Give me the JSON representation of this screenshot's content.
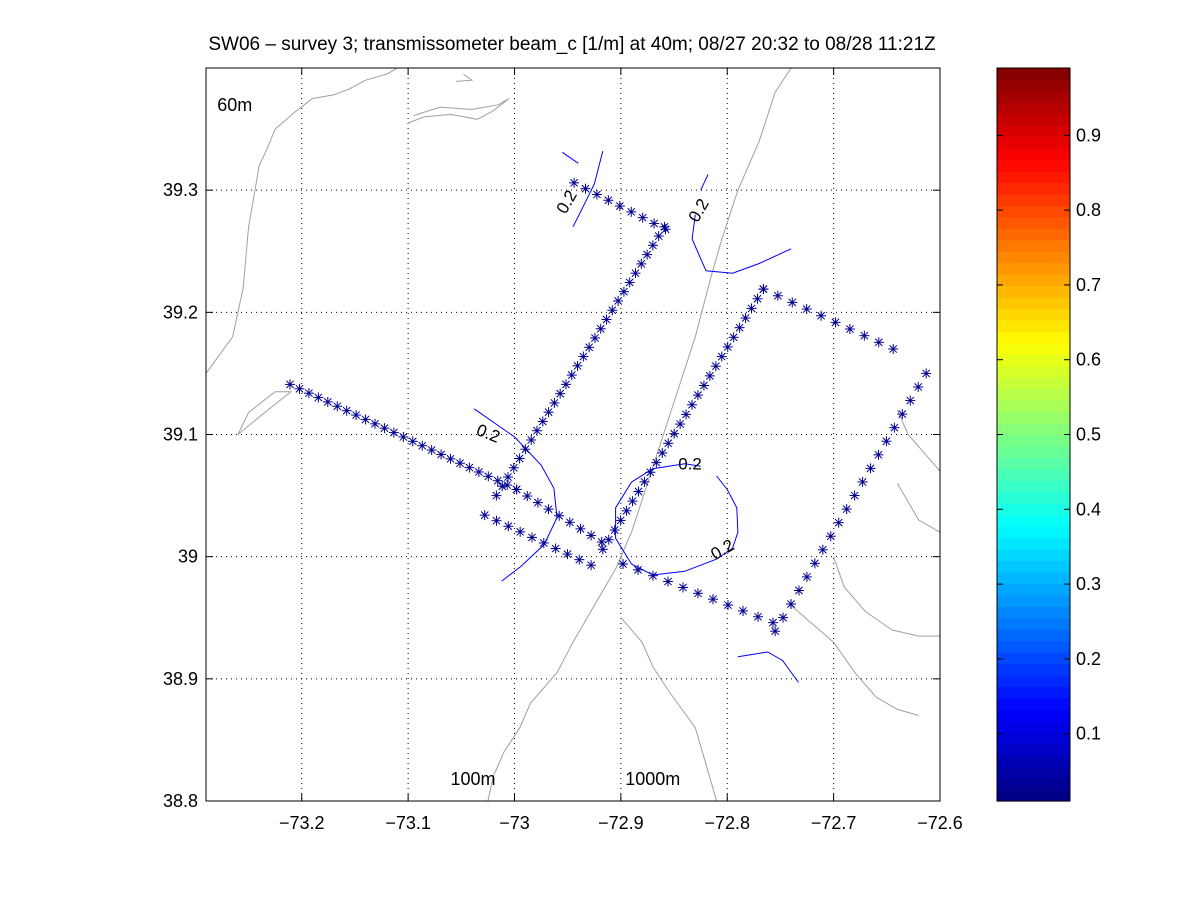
{
  "chart_data": {
    "type": "scatter",
    "title": "SW06 – survey 3; transmissometer beam_c [1/m] at 40m; 08/27 20:32 to 08/28 11:21Z",
    "xlabel": "",
    "ylabel": "",
    "xlim": [
      -73.29,
      -72.6
    ],
    "ylim": [
      38.8,
      39.4
    ],
    "xticks": [
      -73.2,
      -73.1,
      -73.0,
      -72.9,
      -72.8,
      -72.7,
      -72.6
    ],
    "xtick_labels": [
      "−73.2",
      "−73.1",
      "−73",
      "−72.9",
      "−72.8",
      "−72.7",
      "−72.6"
    ],
    "yticks": [
      38.8,
      38.9,
      39.0,
      39.1,
      39.2,
      39.3
    ],
    "ytick_labels": [
      "38.8",
      "38.9",
      "39",
      "39.1",
      "39.2",
      "39.3"
    ],
    "grid": true,
    "colors": {
      "stations": "#00008f",
      "contour": "#0000ff",
      "bathymetry": "#a0a0a0",
      "axes": "#000000",
      "grid": "#000000"
    },
    "station_marker": "asterisk",
    "station_segments": [
      {
        "from": [
          -73.211,
          39.141
        ],
        "to": [
          -72.998,
          39.055
        ],
        "count": 25
      },
      {
        "from": [
          -72.998,
          39.055
        ],
        "to": [
          -72.918,
          39.012
        ],
        "count": 9
      },
      {
        "from": [
          -73.017,
          39.05
        ],
        "to": [
          -72.859,
          39.27
        ],
        "count": 30
      },
      {
        "from": [
          -72.944,
          39.306
        ],
        "to": [
          -72.858,
          39.268
        ],
        "count": 9
      },
      {
        "from": [
          -73.028,
          39.034
        ],
        "to": [
          -72.928,
          38.993
        ],
        "count": 10
      },
      {
        "from": [
          -72.917,
          39.006
        ],
        "to": [
          -72.766,
          39.219
        ],
        "count": 28
      },
      {
        "from": [
          -72.898,
          38.994
        ],
        "to": [
          -72.757,
          38.946
        ],
        "count": 11
      },
      {
        "from": [
          -72.766,
          39.219
        ],
        "to": [
          -72.644,
          39.17
        ],
        "count": 10
      },
      {
        "from": [
          -72.613,
          39.15
        ],
        "to": [
          -72.755,
          38.939
        ],
        "count": 20
      }
    ],
    "contour_level": 0.2,
    "contour_label": "0.2",
    "contour_lines": [
      [
        [
          -73.038,
          39.121
        ],
        [
          -73.0,
          39.098
        ],
        [
          -72.975,
          39.075
        ],
        [
          -72.963,
          39.056
        ],
        [
          -72.96,
          39.032
        ],
        [
          -72.972,
          39.01
        ],
        [
          -72.994,
          38.992
        ],
        [
          -73.012,
          38.98
        ]
      ],
      [
        [
          -72.945,
          39.27
        ],
        [
          -72.938,
          39.282
        ],
        [
          -72.925,
          39.305
        ],
        [
          -72.917,
          39.332
        ]
      ],
      [
        [
          -72.94,
          39.322
        ],
        [
          -72.955,
          39.331
        ]
      ],
      [
        [
          -72.83,
          39.28
        ],
        [
          -72.833,
          39.26
        ],
        [
          -72.82,
          39.234
        ],
        [
          -72.795,
          39.232
        ],
        [
          -72.77,
          39.24
        ],
        [
          -72.74,
          39.252
        ]
      ],
      [
        [
          -72.825,
          39.3
        ],
        [
          -72.818,
          39.313
        ]
      ],
      [
        [
          -72.81,
          39.066
        ],
        [
          -72.8,
          39.055
        ],
        [
          -72.791,
          39.04
        ],
        [
          -72.79,
          39.02
        ],
        [
          -72.795,
          39.007
        ],
        [
          -72.81,
          38.998
        ],
        [
          -72.84,
          38.988
        ],
        [
          -72.87,
          38.985
        ],
        [
          -72.89,
          38.994
        ],
        [
          -72.905,
          39.015
        ],
        [
          -72.905,
          39.04
        ],
        [
          -72.89,
          39.061
        ],
        [
          -72.87,
          39.072
        ],
        [
          -72.84,
          39.076
        ],
        [
          -72.825,
          39.074
        ]
      ],
      [
        [
          -72.79,
          38.918
        ],
        [
          -72.762,
          38.922
        ],
        [
          -72.748,
          38.915
        ],
        [
          -72.733,
          38.897
        ]
      ]
    ],
    "contour_labels": [
      {
        "x": -73.025,
        "y": 39.1,
        "rotation": 22
      },
      {
        "x": -72.95,
        "y": 39.29,
        "rotation": -60
      },
      {
        "x": -72.826,
        "y": 39.283,
        "rotation": -60
      },
      {
        "x": -72.835,
        "y": 39.075,
        "rotation": 0
      },
      {
        "x": -72.804,
        "y": 39.005,
        "rotation": -30
      }
    ],
    "bathymetry_labels": [
      "60m",
      "100m",
      "1000m"
    ],
    "bathymetry_label_positions": [
      {
        "x": -73.263,
        "y": 39.365
      },
      {
        "x": -73.039,
        "y": 38.813
      },
      {
        "x": -72.87,
        "y": 38.813
      }
    ],
    "bathymetry_contours": [
      [
        [
          -73.29,
          39.15
        ],
        [
          -73.265,
          39.18
        ],
        [
          -73.255,
          39.22
        ],
        [
          -73.25,
          39.27
        ],
        [
          -73.24,
          39.32
        ],
        [
          -73.232,
          39.335
        ],
        [
          -73.225,
          39.35
        ],
        [
          -73.205,
          39.365
        ],
        [
          -73.19,
          39.375
        ],
        [
          -73.17,
          39.378
        ],
        [
          -73.155,
          39.383
        ],
        [
          -73.14,
          39.39
        ],
        [
          -73.12,
          39.395
        ],
        [
          -73.11,
          39.4
        ]
      ],
      [
        [
          -73.26,
          39.1
        ],
        [
          -73.232,
          39.12
        ],
        [
          -73.21,
          39.135
        ],
        [
          -73.225,
          39.135
        ],
        [
          -73.25,
          39.118
        ],
        [
          -73.26,
          39.1
        ]
      ],
      [
        [
          -73.1,
          39.355
        ],
        [
          -73.085,
          39.36
        ],
        [
          -73.06,
          39.362
        ],
        [
          -73.035,
          39.358
        ],
        [
          -73.02,
          39.365
        ],
        [
          -73.005,
          39.375
        ],
        [
          -73.015,
          39.37
        ],
        [
          -73.04,
          39.366
        ],
        [
          -73.07,
          39.368
        ],
        [
          -73.095,
          39.361
        ]
      ],
      [
        [
          -73.055,
          39.389
        ],
        [
          -73.04,
          39.39
        ],
        [
          -73.048,
          39.395
        ]
      ],
      [
        [
          -72.74,
          39.4
        ],
        [
          -72.755,
          39.38
        ],
        [
          -72.77,
          39.34
        ],
        [
          -72.79,
          39.3
        ],
        [
          -72.805,
          39.26
        ],
        [
          -72.815,
          39.23
        ],
        [
          -72.83,
          39.18
        ],
        [
          -72.845,
          39.14
        ],
        [
          -72.86,
          39.1
        ],
        [
          -72.875,
          39.06
        ],
        [
          -72.89,
          39.02
        ],
        [
          -72.905,
          38.99
        ],
        [
          -72.925,
          38.96
        ],
        [
          -72.945,
          38.93
        ],
        [
          -72.96,
          38.905
        ],
        [
          -72.985,
          38.88
        ],
        [
          -72.995,
          38.86
        ],
        [
          -73.01,
          38.84
        ],
        [
          -73.02,
          38.82
        ],
        [
          -73.025,
          38.8
        ]
      ],
      [
        [
          -72.74,
          38.96
        ],
        [
          -72.72,
          38.945
        ],
        [
          -72.7,
          38.93
        ],
        [
          -72.68,
          38.905
        ],
        [
          -72.66,
          38.885
        ],
        [
          -72.64,
          38.875
        ],
        [
          -72.62,
          38.87
        ]
      ],
      [
        [
          -72.9,
          38.95
        ],
        [
          -72.88,
          38.93
        ],
        [
          -72.87,
          38.91
        ],
        [
          -72.855,
          38.89
        ],
        [
          -72.83,
          38.86
        ],
        [
          -72.82,
          38.83
        ],
        [
          -72.81,
          38.8
        ]
      ],
      [
        [
          -72.7,
          39.0
        ],
        [
          -72.69,
          38.975
        ],
        [
          -72.67,
          38.955
        ],
        [
          -72.645,
          38.94
        ],
        [
          -72.62,
          38.935
        ],
        [
          -72.6,
          38.935
        ]
      ],
      [
        [
          -72.64,
          39.12
        ],
        [
          -72.63,
          39.1
        ],
        [
          -72.615,
          39.085
        ],
        [
          -72.6,
          39.07
        ]
      ],
      [
        [
          -72.64,
          39.06
        ],
        [
          -72.63,
          39.045
        ],
        [
          -72.62,
          39.03
        ],
        [
          -72.6,
          39.02
        ]
      ]
    ],
    "colorbar": {
      "range": [
        0.01,
        0.99
      ],
      "ticks": [
        0.1,
        0.2,
        0.3,
        0.4,
        0.5,
        0.6,
        0.7,
        0.8,
        0.9
      ],
      "tick_labels": [
        "0.1",
        "0.2",
        "0.3",
        "0.4",
        "0.5",
        "0.6",
        "0.7",
        "0.8",
        "0.9"
      ],
      "colormap": "jet"
    }
  }
}
